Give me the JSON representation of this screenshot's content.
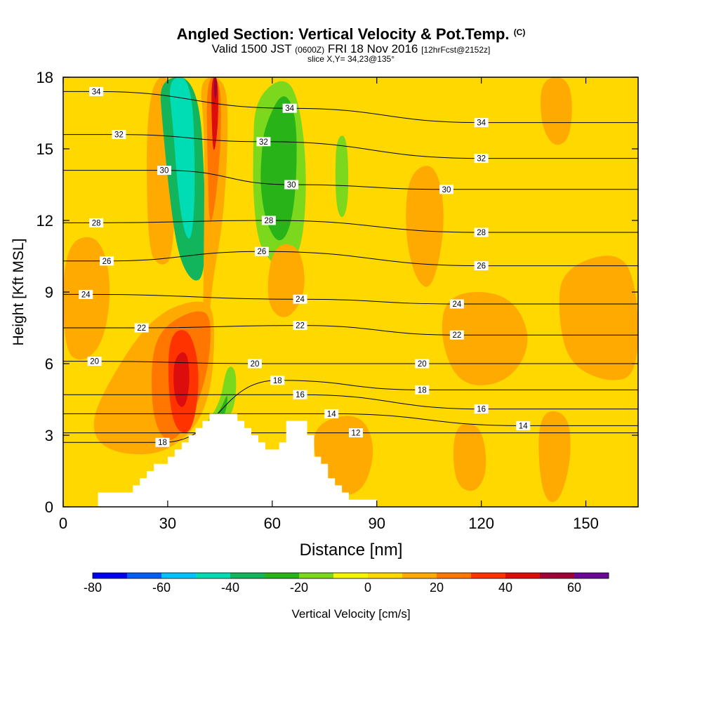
{
  "header": {
    "title": "Angled Section: Vertical Velocity & Pot.Temp.",
    "title_units": "(C)",
    "valid_prefix": "Valid 1500 JST",
    "valid_zulu": "(0600Z)",
    "valid_date": "FRI 18 Nov 2016",
    "forecast_info": "[12hrFcst@2152z]",
    "slice_info": "slice X,Y= 34,23@135°"
  },
  "chart_data": {
    "type": "heatmap",
    "xlabel": "Distance [nm]",
    "ylabel": "Height [Kft MSL]",
    "xlim": [
      0,
      165
    ],
    "ylim": [
      0,
      18
    ],
    "xticks": [
      0,
      30,
      60,
      90,
      120,
      150
    ],
    "yticks": [
      0,
      3,
      6,
      9,
      12,
      15,
      18
    ],
    "background_value": 0,
    "fill_field": "Vertical Velocity [cm/s]",
    "contour_field": "Potential Temperature (C)",
    "colorbar": {
      "label": "Vertical Velocity [cm/s]",
      "tick_labels": [
        "-80",
        "-60",
        "-40",
        "-20",
        "0",
        "20",
        "40",
        "60"
      ],
      "levels": [
        -80,
        -70,
        -60,
        -50,
        -40,
        -30,
        -20,
        -10,
        0,
        10,
        20,
        30,
        40,
        50,
        60,
        70
      ],
      "colors": [
        "#0000f0",
        "#005ef5",
        "#00c2ff",
        "#00dcb4",
        "#12b45c",
        "#28b418",
        "#7cd81c",
        "#f5f500",
        "#ffd800",
        "#ffaa00",
        "#ff7700",
        "#ff3300",
        "#dd0d0d",
        "#a00035",
        "#6a0896"
      ]
    },
    "velocity_regions": [
      {
        "value": 10,
        "points": [
          [
            24,
            18
          ],
          [
            33,
            18
          ],
          [
            32,
            10.5
          ],
          [
            28,
            10
          ],
          [
            24,
            10.8
          ]
        ]
      },
      {
        "value": -40,
        "points": [
          [
            27.5,
            18
          ],
          [
            39,
            18
          ],
          [
            41,
            12.3
          ],
          [
            40.5,
            9.6
          ],
          [
            37,
            9.4
          ],
          [
            33,
            10.5
          ],
          [
            30.5,
            13
          ],
          [
            28.5,
            16
          ]
        ]
      },
      {
        "value": -50,
        "points": [
          [
            30,
            18
          ],
          [
            37,
            18
          ],
          [
            38,
            13.5
          ],
          [
            37,
            11.2
          ],
          [
            35,
            11.3
          ],
          [
            33,
            13
          ],
          [
            31.5,
            16
          ]
        ]
      },
      {
        "value": 10,
        "points": [
          [
            39,
            18
          ],
          [
            46.5,
            18
          ],
          [
            47.5,
            16
          ],
          [
            46,
            12
          ],
          [
            43,
            9.6
          ],
          [
            42,
            8
          ],
          [
            40,
            7
          ],
          [
            40.5,
            12
          ],
          [
            40.5,
            16
          ]
        ]
      },
      {
        "value": 20,
        "points": [
          [
            41,
            18
          ],
          [
            45,
            18
          ],
          [
            45.5,
            15.8
          ],
          [
            44,
            13
          ],
          [
            42,
            11.5
          ],
          [
            41.5,
            14
          ]
        ]
      },
      {
        "value": 40,
        "points": [
          [
            42.5,
            18
          ],
          [
            44.5,
            18
          ],
          [
            44.5,
            16
          ],
          [
            43.2,
            14.6
          ],
          [
            42.6,
            16
          ]
        ]
      },
      {
        "value": 50,
        "points": [
          [
            43.2,
            18
          ],
          [
            44.2,
            18
          ],
          [
            44,
            17.1
          ],
          [
            43.4,
            17.1
          ]
        ]
      },
      {
        "value": -20,
        "points": [
          [
            55,
            17
          ],
          [
            62,
            18
          ],
          [
            67,
            17.5
          ],
          [
            70,
            14.5
          ],
          [
            69,
            11
          ],
          [
            64,
            9.8
          ],
          [
            60,
            10.2
          ],
          [
            56,
            11
          ],
          [
            54.5,
            13
          ],
          [
            54.5,
            15
          ]
        ]
      },
      {
        "value": -30,
        "points": [
          [
            58,
            16
          ],
          [
            63,
            17.5
          ],
          [
            67,
            16.5
          ],
          [
            67,
            13.5
          ],
          [
            65,
            11.5
          ],
          [
            61.5,
            11
          ],
          [
            58,
            12
          ],
          [
            56.5,
            13.5
          ],
          [
            57,
            15
          ]
        ]
      },
      {
        "value": -20,
        "points": [
          [
            78.5,
            15.5
          ],
          [
            81.5,
            15.6
          ],
          [
            82,
            13
          ],
          [
            80.5,
            12
          ],
          [
            78.5,
            12.4
          ],
          [
            78,
            14
          ]
        ]
      },
      {
        "value": 10,
        "points": [
          [
            0,
            11
          ],
          [
            10,
            11.5
          ],
          [
            14,
            9.5
          ],
          [
            12,
            7
          ],
          [
            6,
            6
          ],
          [
            0,
            6.5
          ]
        ]
      },
      {
        "value": 10,
        "points": [
          [
            60,
            11
          ],
          [
            68,
            11
          ],
          [
            70,
            9
          ],
          [
            64,
            7.7
          ],
          [
            58,
            8.5
          ]
        ]
      },
      {
        "value": 10,
        "points": [
          [
            99,
            14
          ],
          [
            107,
            14.5
          ],
          [
            110,
            12
          ],
          [
            106,
            9
          ],
          [
            101,
            9.5
          ],
          [
            98,
            11.5
          ]
        ]
      },
      {
        "value": 10,
        "points": [
          [
            137,
            18
          ],
          [
            146,
            18
          ],
          [
            146,
            15.5
          ],
          [
            141,
            15
          ],
          [
            137,
            16
          ]
        ]
      },
      {
        "value": 10,
        "points": [
          [
            110,
            9
          ],
          [
            128,
            9
          ],
          [
            135,
            7
          ],
          [
            128,
            5.2
          ],
          [
            114,
            5
          ],
          [
            108,
            7
          ]
        ]
      },
      {
        "value": 10,
        "points": [
          [
            143,
            10
          ],
          [
            160,
            10.8
          ],
          [
            165,
            9
          ],
          [
            165,
            5.5
          ],
          [
            156,
            5.2
          ],
          [
            145,
            6
          ],
          [
            142,
            8
          ]
        ]
      },
      {
        "value": 10,
        "points": [
          [
            10,
            4.5
          ],
          [
            25,
            8
          ],
          [
            40,
            8.8
          ],
          [
            44,
            8
          ],
          [
            42,
            4
          ],
          [
            30,
            2.2
          ],
          [
            15,
            2.2
          ],
          [
            8,
            3
          ]
        ]
      },
      {
        "value": 20,
        "points": [
          [
            28,
            7.5
          ],
          [
            38,
            8.3
          ],
          [
            43,
            8
          ],
          [
            41,
            5
          ],
          [
            32,
            2.5
          ],
          [
            26,
            3.3
          ],
          [
            25,
            6
          ]
        ]
      },
      {
        "value": 30,
        "points": [
          [
            30.5,
            7.3
          ],
          [
            36.5,
            7.5
          ],
          [
            39.5,
            5.5
          ],
          [
            37,
            3
          ],
          [
            32,
            3.2
          ],
          [
            30,
            5
          ]
        ]
      },
      {
        "value": 40,
        "points": [
          [
            32,
            6.3
          ],
          [
            35.5,
            6.6
          ],
          [
            36.5,
            5.3
          ],
          [
            35,
            4.1
          ],
          [
            32.5,
            4.3
          ],
          [
            31.5,
            5.2
          ]
        ]
      },
      {
        "value": -20,
        "points": [
          [
            39.8,
            3.3
          ],
          [
            45,
            4.3
          ],
          [
            47,
            6
          ],
          [
            50,
            5.7
          ],
          [
            49,
            3.8
          ],
          [
            43,
            3.4
          ]
        ]
      },
      {
        "value": -30,
        "points": [
          [
            41,
            3.4
          ],
          [
            45,
            4
          ],
          [
            47.5,
            4.9
          ],
          [
            46.5,
            3.7
          ]
        ]
      },
      {
        "value": -40,
        "points": [
          [
            42.5,
            3.5
          ],
          [
            45.5,
            3.8
          ],
          [
            46.5,
            4.2
          ],
          [
            45.5,
            3.5
          ]
        ]
      },
      {
        "value": 10,
        "points": [
          [
            72,
            3.5
          ],
          [
            85,
            4
          ],
          [
            90,
            2.5
          ],
          [
            86,
            0.5
          ],
          [
            76,
            0.5
          ],
          [
            72,
            2
          ]
        ]
      },
      {
        "value": 10,
        "points": [
          [
            112,
            3.5
          ],
          [
            120,
            3.5
          ],
          [
            122,
            1.5
          ],
          [
            118,
            0.5
          ],
          [
            112,
            1
          ]
        ]
      },
      {
        "value": 10,
        "points": [
          [
            136,
            4
          ],
          [
            145,
            4
          ],
          [
            146,
            2
          ],
          [
            142,
            0
          ],
          [
            137,
            0.5
          ]
        ]
      }
    ],
    "theta_labels": [
      {
        "text": "34",
        "x": 9.5,
        "y": 17.4
      },
      {
        "text": "32",
        "x": 16,
        "y": 15.6
      },
      {
        "text": "30",
        "x": 29,
        "y": 14.1
      },
      {
        "text": "28",
        "x": 9.5,
        "y": 11.9
      },
      {
        "text": "26",
        "x": 12.5,
        "y": 10.3
      },
      {
        "text": "24",
        "x": 6.5,
        "y": 8.9
      },
      {
        "text": "22",
        "x": 22.5,
        "y": 7.5
      },
      {
        "text": "20",
        "x": 9,
        "y": 6.1
      },
      {
        "text": "18",
        "x": 28.5,
        "y": 2.7
      },
      {
        "text": "34",
        "x": 65,
        "y": 16.7
      },
      {
        "text": "32",
        "x": 57.5,
        "y": 15.3
      },
      {
        "text": "30",
        "x": 65.5,
        "y": 13.5
      },
      {
        "text": "28",
        "x": 59,
        "y": 12.0
      },
      {
        "text": "26",
        "x": 57,
        "y": 10.7
      },
      {
        "text": "24",
        "x": 68,
        "y": 8.7
      },
      {
        "text": "22",
        "x": 68,
        "y": 7.6
      },
      {
        "text": "20",
        "x": 55,
        "y": 6.0
      },
      {
        "text": "18",
        "x": 61.5,
        "y": 5.3
      },
      {
        "text": "16",
        "x": 68,
        "y": 4.7
      },
      {
        "text": "14",
        "x": 77,
        "y": 3.9
      },
      {
        "text": "12",
        "x": 84,
        "y": 3.1
      },
      {
        "text": "34",
        "x": 120,
        "y": 16.1
      },
      {
        "text": "32",
        "x": 120,
        "y": 14.6
      },
      {
        "text": "30",
        "x": 110,
        "y": 13.3
      },
      {
        "text": "28",
        "x": 120,
        "y": 11.5
      },
      {
        "text": "26",
        "x": 120,
        "y": 10.1
      },
      {
        "text": "24",
        "x": 113,
        "y": 8.5
      },
      {
        "text": "22",
        "x": 113,
        "y": 7.2
      },
      {
        "text": "20",
        "x": 103,
        "y": 6.0
      },
      {
        "text": "18",
        "x": 103,
        "y": 4.9
      },
      {
        "text": "16",
        "x": 120,
        "y": 4.1
      },
      {
        "text": "14",
        "x": 132,
        "y": 3.4
      }
    ],
    "terrain_profile": [
      [
        0,
        0
      ],
      [
        10,
        0
      ],
      [
        10,
        0.6
      ],
      [
        20,
        0.6
      ],
      [
        20,
        0.9
      ],
      [
        22,
        0.9
      ],
      [
        22,
        1.2
      ],
      [
        24,
        1.2
      ],
      [
        24,
        1.5
      ],
      [
        26,
        1.5
      ],
      [
        26,
        1.8
      ],
      [
        30,
        1.8
      ],
      [
        30,
        2.1
      ],
      [
        32,
        2.1
      ],
      [
        32,
        2.4
      ],
      [
        34,
        2.4
      ],
      [
        34,
        2.7
      ],
      [
        36,
        2.7
      ],
      [
        36,
        3.0
      ],
      [
        38,
        3.0
      ],
      [
        38,
        3.3
      ],
      [
        40,
        3.3
      ],
      [
        40,
        3.6
      ],
      [
        42,
        3.6
      ],
      [
        42,
        3.9
      ],
      [
        50,
        3.9
      ],
      [
        50,
        3.6
      ],
      [
        52,
        3.6
      ],
      [
        52,
        3.3
      ],
      [
        54,
        3.3
      ],
      [
        54,
        3.0
      ],
      [
        56,
        3.0
      ],
      [
        56,
        2.7
      ],
      [
        58,
        2.7
      ],
      [
        58,
        2.4
      ],
      [
        62,
        2.4
      ],
      [
        62,
        2.7
      ],
      [
        64,
        2.7
      ],
      [
        64,
        3.6
      ],
      [
        70,
        3.6
      ],
      [
        70,
        3.0
      ],
      [
        72,
        3.0
      ],
      [
        72,
        2.1
      ],
      [
        74,
        2.1
      ],
      [
        74,
        1.8
      ],
      [
        76,
        1.8
      ],
      [
        76,
        1.2
      ],
      [
        78,
        1.2
      ],
      [
        78,
        0.9
      ],
      [
        80,
        0.9
      ],
      [
        80,
        0.6
      ],
      [
        82,
        0.6
      ],
      [
        82,
        0.3
      ],
      [
        90,
        0.3
      ],
      [
        90,
        0
      ]
    ]
  }
}
